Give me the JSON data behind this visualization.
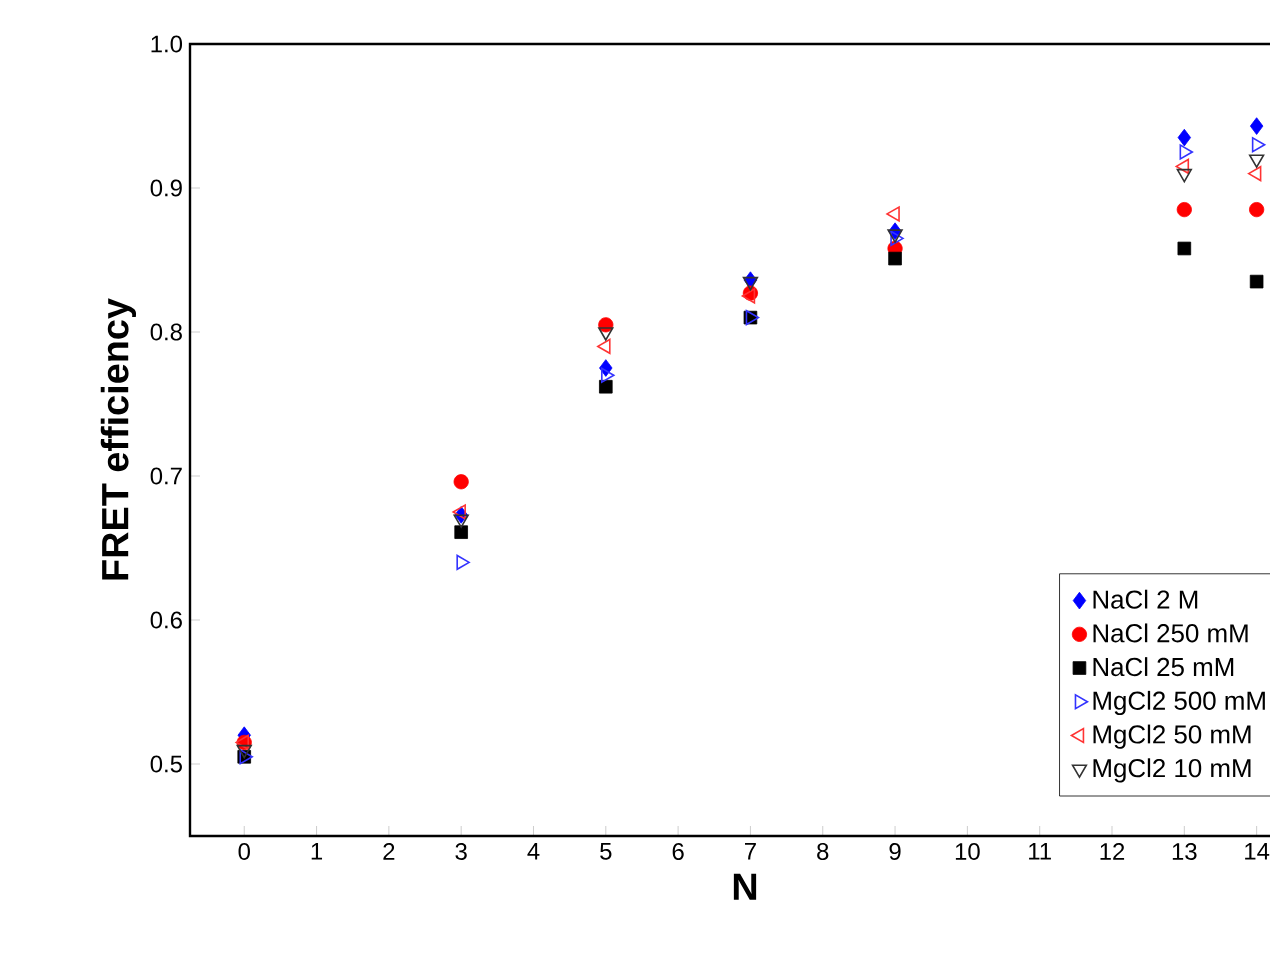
{
  "chart_data": {
    "type": "scatter",
    "xlabel": "N",
    "ylabel": "FRET efficiency",
    "x": [
      0,
      3,
      5,
      7,
      9,
      13,
      14
    ],
    "xlim": [
      -0.75,
      14.6
    ],
    "ylim": [
      0.45,
      1.0
    ],
    "xticks": [
      0,
      1,
      2,
      3,
      4,
      5,
      6,
      7,
      8,
      9,
      10,
      11,
      12,
      13,
      14
    ],
    "yticks": [
      0.5,
      0.6,
      0.7,
      0.8,
      0.9,
      {
        "value": 1.0,
        "label": "1.0"
      }
    ],
    "legend": "bottom right",
    "grid": false,
    "series": [
      {
        "name": "NaCl 2 M",
        "color": "#0000ff",
        "marker": "diamond",
        "values": [
          0.52,
          0.673,
          0.775,
          0.836,
          0.87,
          0.935,
          0.943
        ]
      },
      {
        "name": "NaCl 250 mM",
        "color": "#ff0000",
        "marker": "circle",
        "values": [
          0.515,
          0.696,
          0.805,
          0.827,
          0.858,
          0.885,
          0.885
        ]
      },
      {
        "name": "NaCl 25 mM",
        "color": "#000000",
        "marker": "square",
        "values": [
          0.505,
          0.661,
          0.762,
          0.81,
          0.851,
          0.858,
          0.835
        ]
      },
      {
        "name": "MgCl2 500 mM",
        "color": "#3333ff",
        "marker": "triangle-right",
        "values": [
          0.505,
          0.64,
          0.77,
          0.81,
          0.865,
          0.925,
          0.93
        ]
      },
      {
        "name": "MgCl2 50 mM",
        "color": "#ff3333",
        "marker": "triangle-left",
        "values": [
          0.515,
          0.675,
          0.79,
          0.825,
          0.882,
          0.915,
          0.91
        ]
      },
      {
        "name": "MgCl2 10 mM",
        "color": "#333333",
        "marker": "triangle-down",
        "values": [
          0.51,
          0.67,
          0.8,
          0.835,
          0.868,
          0.91,
          0.92
        ]
      }
    ]
  }
}
